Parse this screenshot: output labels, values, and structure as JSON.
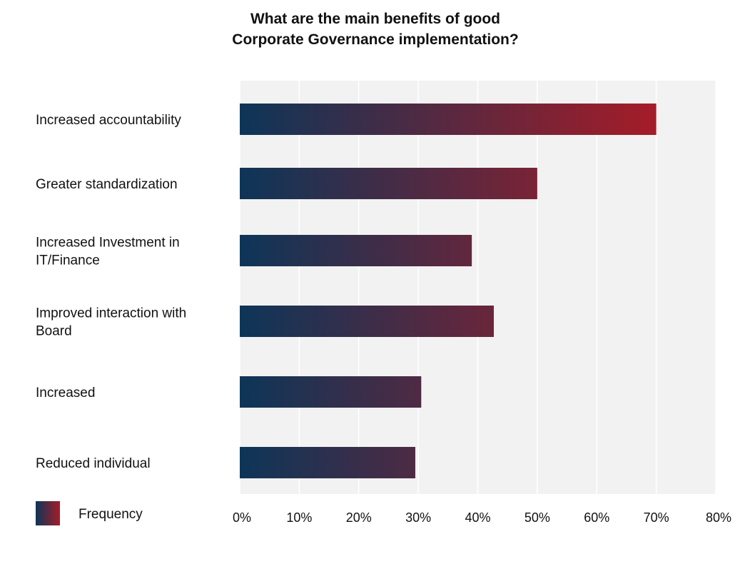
{
  "chart_data": {
    "type": "bar",
    "orientation": "horizontal",
    "title_lines": [
      "What are the main benefits of good",
      "Corporate Governance implementation?"
    ],
    "categories": [
      [
        "Increased accountability"
      ],
      [
        "Greater standardization"
      ],
      [
        "Increased Investment in",
        "IT/Finance"
      ],
      [
        "Improved interaction with",
        "Board"
      ],
      [
        "Increased"
      ],
      [
        "Reduced individual"
      ]
    ],
    "series": [
      {
        "name": "Frequency",
        "values": [
          70,
          50,
          39,
          42.7,
          30.5,
          29.5
        ]
      }
    ],
    "xlim": [
      0,
      80
    ],
    "xticks": [
      0,
      10,
      20,
      30,
      40,
      50,
      60,
      70,
      80
    ],
    "tick_suffix": "%",
    "grid": true,
    "legend_position": "bottom-left",
    "colors": {
      "gradient_start": "#0d3558",
      "gradient_end": "#a51c28",
      "plot_background": "#f2f2f2",
      "gridline": "#ffffff"
    }
  }
}
